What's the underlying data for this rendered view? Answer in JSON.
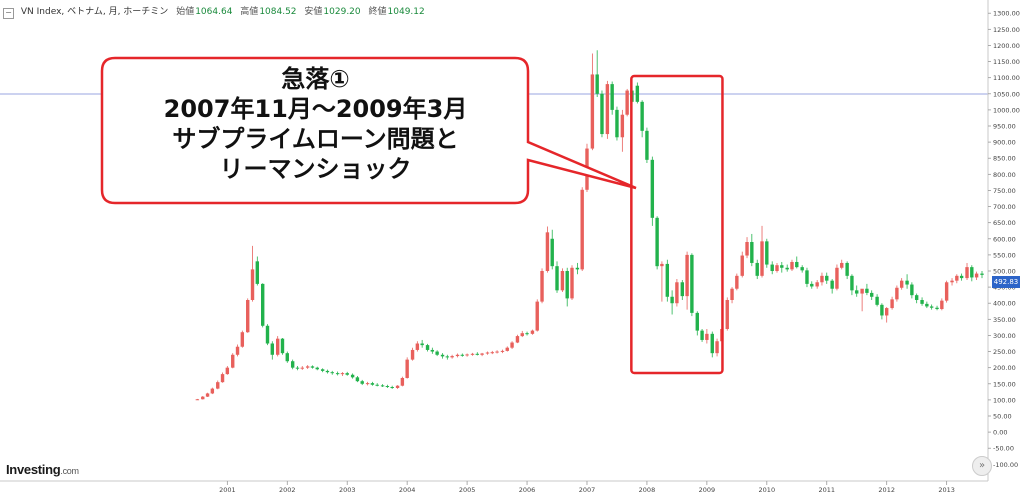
{
  "header": {
    "collapse_symbol": "−",
    "instrument": "VN Index, ベトナム, 月, ホーチミン",
    "open_label": "始値",
    "open_value": "1064.64",
    "high_label": "高値",
    "high_value": "1084.52",
    "low_label": "安値",
    "low_value": "1029.20",
    "close_label": "終値",
    "close_value": "1049.12"
  },
  "brand": {
    "name": "Investing",
    "suffix": ".com"
  },
  "last_price_tag": "492.83",
  "scroll_button_icon": "double-chevron-right-icon",
  "annotation": {
    "lines": [
      "急落①",
      "2007年11月～2009年3月",
      "サブプライムローン問題と",
      "リーマンショック"
    ]
  },
  "colors": {
    "up": "#e8605c",
    "down": "#22b24c",
    "highlight_box": "#e5262a",
    "ref_line": "#9aa6e0",
    "price_tag": "#2c64c8"
  },
  "chart_data": {
    "type": "candlestick",
    "x_tick_labels": [
      "2001",
      "2002",
      "2003",
      "2004",
      "2005",
      "2006",
      "2007",
      "2008",
      "2009",
      "2010",
      "2011",
      "2012",
      "2013"
    ],
    "y_tick_labels": [
      "-100.00",
      "-50.00",
      "0.00",
      "50.00",
      "100.00",
      "150.00",
      "200.00",
      "250.00",
      "300.00",
      "350.00",
      "400.00",
      "450.00",
      "500.00",
      "550.00",
      "600.00",
      "650.00",
      "700.00",
      "750.00",
      "800.00",
      "850.00",
      "900.00",
      "950.00",
      "1000.00",
      "1050.00",
      "1100.00",
      "1150.00",
      "1200.00",
      "1250.00",
      "1300.00"
    ],
    "ylim": [
      -130,
      1310
    ],
    "xlim": [
      2000.0,
      2013.68
    ],
    "reference_line": 1049.12,
    "highlight_period": [
      "2007-11",
      "2009-03"
    ],
    "grid": false,
    "candles": [
      {
        "t": 2000.54,
        "o": 100,
        "h": 103,
        "l": 100,
        "c": 102
      },
      {
        "t": 2000.63,
        "o": 102,
        "h": 112,
        "l": 101,
        "c": 110
      },
      {
        "t": 2000.71,
        "o": 110,
        "h": 122,
        "l": 109,
        "c": 120
      },
      {
        "t": 2000.79,
        "o": 120,
        "h": 138,
        "l": 118,
        "c": 135
      },
      {
        "t": 2000.88,
        "o": 135,
        "h": 160,
        "l": 133,
        "c": 155
      },
      {
        "t": 2000.96,
        "o": 155,
        "h": 185,
        "l": 153,
        "c": 180
      },
      {
        "t": 2001.04,
        "o": 180,
        "h": 205,
        "l": 178,
        "c": 200
      },
      {
        "t": 2001.13,
        "o": 200,
        "h": 245,
        "l": 198,
        "c": 240
      },
      {
        "t": 2001.21,
        "o": 240,
        "h": 272,
        "l": 235,
        "c": 265
      },
      {
        "t": 2001.29,
        "o": 265,
        "h": 315,
        "l": 262,
        "c": 310
      },
      {
        "t": 2001.38,
        "o": 310,
        "h": 415,
        "l": 308,
        "c": 410
      },
      {
        "t": 2001.46,
        "o": 410,
        "h": 578,
        "l": 405,
        "c": 505
      },
      {
        "t": 2001.54,
        "o": 530,
        "h": 545,
        "l": 455,
        "c": 460
      },
      {
        "t": 2001.63,
        "o": 460,
        "h": 462,
        "l": 325,
        "c": 330
      },
      {
        "t": 2001.71,
        "o": 330,
        "h": 335,
        "l": 270,
        "c": 275
      },
      {
        "t": 2001.79,
        "o": 275,
        "h": 282,
        "l": 225,
        "c": 240
      },
      {
        "t": 2001.88,
        "o": 240,
        "h": 298,
        "l": 235,
        "c": 290
      },
      {
        "t": 2001.96,
        "o": 290,
        "h": 292,
        "l": 240,
        "c": 245
      },
      {
        "t": 2002.04,
        "o": 245,
        "h": 250,
        "l": 215,
        "c": 220
      },
      {
        "t": 2002.13,
        "o": 220,
        "h": 225,
        "l": 195,
        "c": 200
      },
      {
        "t": 2002.21,
        "o": 200,
        "h": 205,
        "l": 192,
        "c": 198
      },
      {
        "t": 2002.29,
        "o": 198,
        "h": 205,
        "l": 193,
        "c": 200
      },
      {
        "t": 2002.38,
        "o": 200,
        "h": 208,
        "l": 196,
        "c": 204
      },
      {
        "t": 2002.46,
        "o": 204,
        "h": 207,
        "l": 197,
        "c": 200
      },
      {
        "t": 2002.54,
        "o": 200,
        "h": 203,
        "l": 192,
        "c": 195
      },
      {
        "t": 2002.63,
        "o": 195,
        "h": 198,
        "l": 186,
        "c": 190
      },
      {
        "t": 2002.71,
        "o": 190,
        "h": 194,
        "l": 182,
        "c": 186
      },
      {
        "t": 2002.79,
        "o": 186,
        "h": 190,
        "l": 178,
        "c": 183
      },
      {
        "t": 2002.88,
        "o": 183,
        "h": 188,
        "l": 176,
        "c": 180
      },
      {
        "t": 2002.96,
        "o": 180,
        "h": 186,
        "l": 174,
        "c": 183
      },
      {
        "t": 2003.04,
        "o": 183,
        "h": 187,
        "l": 175,
        "c": 178
      },
      {
        "t": 2003.13,
        "o": 178,
        "h": 182,
        "l": 166,
        "c": 170
      },
      {
        "t": 2003.21,
        "o": 170,
        "h": 174,
        "l": 155,
        "c": 158
      },
      {
        "t": 2003.29,
        "o": 158,
        "h": 162,
        "l": 146,
        "c": 150
      },
      {
        "t": 2003.38,
        "o": 150,
        "h": 156,
        "l": 145,
        "c": 152
      },
      {
        "t": 2003.46,
        "o": 152,
        "h": 156,
        "l": 144,
        "c": 147
      },
      {
        "t": 2003.54,
        "o": 147,
        "h": 152,
        "l": 142,
        "c": 145
      },
      {
        "t": 2003.63,
        "o": 145,
        "h": 149,
        "l": 140,
        "c": 143
      },
      {
        "t": 2003.71,
        "o": 143,
        "h": 147,
        "l": 137,
        "c": 140
      },
      {
        "t": 2003.79,
        "o": 140,
        "h": 144,
        "l": 134,
        "c": 137
      },
      {
        "t": 2003.88,
        "o": 137,
        "h": 146,
        "l": 134,
        "c": 144
      },
      {
        "t": 2003.96,
        "o": 144,
        "h": 172,
        "l": 142,
        "c": 168
      },
      {
        "t": 2004.04,
        "o": 168,
        "h": 232,
        "l": 166,
        "c": 225
      },
      {
        "t": 2004.13,
        "o": 225,
        "h": 262,
        "l": 222,
        "c": 255
      },
      {
        "t": 2004.21,
        "o": 255,
        "h": 282,
        "l": 250,
        "c": 275
      },
      {
        "t": 2004.29,
        "o": 275,
        "h": 286,
        "l": 262,
        "c": 270
      },
      {
        "t": 2004.38,
        "o": 270,
        "h": 274,
        "l": 250,
        "c": 255
      },
      {
        "t": 2004.46,
        "o": 255,
        "h": 262,
        "l": 243,
        "c": 250
      },
      {
        "t": 2004.54,
        "o": 250,
        "h": 254,
        "l": 236,
        "c": 240
      },
      {
        "t": 2004.63,
        "o": 240,
        "h": 245,
        "l": 228,
        "c": 235
      },
      {
        "t": 2004.71,
        "o": 235,
        "h": 240,
        "l": 225,
        "c": 232
      },
      {
        "t": 2004.79,
        "o": 232,
        "h": 240,
        "l": 228,
        "c": 236
      },
      {
        "t": 2004.88,
        "o": 236,
        "h": 244,
        "l": 232,
        "c": 240
      },
      {
        "t": 2004.96,
        "o": 240,
        "h": 244,
        "l": 234,
        "c": 238
      },
      {
        "t": 2005.04,
        "o": 238,
        "h": 244,
        "l": 234,
        "c": 241
      },
      {
        "t": 2005.13,
        "o": 241,
        "h": 246,
        "l": 237,
        "c": 243
      },
      {
        "t": 2005.21,
        "o": 243,
        "h": 248,
        "l": 238,
        "c": 240
      },
      {
        "t": 2005.29,
        "o": 240,
        "h": 246,
        "l": 236,
        "c": 244
      },
      {
        "t": 2005.38,
        "o": 244,
        "h": 250,
        "l": 240,
        "c": 247
      },
      {
        "t": 2005.46,
        "o": 247,
        "h": 252,
        "l": 242,
        "c": 248
      },
      {
        "t": 2005.54,
        "o": 248,
        "h": 254,
        "l": 244,
        "c": 250
      },
      {
        "t": 2005.63,
        "o": 250,
        "h": 256,
        "l": 245,
        "c": 252
      },
      {
        "t": 2005.71,
        "o": 252,
        "h": 266,
        "l": 250,
        "c": 262
      },
      {
        "t": 2005.79,
        "o": 262,
        "h": 282,
        "l": 258,
        "c": 278
      },
      {
        "t": 2005.88,
        "o": 278,
        "h": 302,
        "l": 276,
        "c": 298
      },
      {
        "t": 2005.96,
        "o": 298,
        "h": 314,
        "l": 295,
        "c": 307
      },
      {
        "t": 2006.04,
        "o": 307,
        "h": 312,
        "l": 300,
        "c": 305
      },
      {
        "t": 2006.13,
        "o": 305,
        "h": 318,
        "l": 302,
        "c": 315
      },
      {
        "t": 2006.21,
        "o": 315,
        "h": 412,
        "l": 312,
        "c": 405
      },
      {
        "t": 2006.29,
        "o": 405,
        "h": 508,
        "l": 400,
        "c": 500
      },
      {
        "t": 2006.38,
        "o": 500,
        "h": 638,
        "l": 495,
        "c": 620
      },
      {
        "t": 2006.46,
        "o": 600,
        "h": 628,
        "l": 505,
        "c": 515
      },
      {
        "t": 2006.54,
        "o": 515,
        "h": 530,
        "l": 432,
        "c": 440
      },
      {
        "t": 2006.63,
        "o": 440,
        "h": 508,
        "l": 435,
        "c": 500
      },
      {
        "t": 2006.71,
        "o": 500,
        "h": 510,
        "l": 390,
        "c": 415
      },
      {
        "t": 2006.79,
        "o": 415,
        "h": 518,
        "l": 410,
        "c": 510
      },
      {
        "t": 2006.88,
        "o": 510,
        "h": 525,
        "l": 490,
        "c": 505
      },
      {
        "t": 2006.96,
        "o": 505,
        "h": 760,
        "l": 500,
        "c": 752
      },
      {
        "t": 2007.04,
        "o": 752,
        "h": 895,
        "l": 745,
        "c": 880
      },
      {
        "t": 2007.13,
        "o": 880,
        "h": 1175,
        "l": 875,
        "c": 1110
      },
      {
        "t": 2007.21,
        "o": 1110,
        "h": 1185,
        "l": 1040,
        "c": 1050
      },
      {
        "t": 2007.29,
        "o": 1050,
        "h": 1060,
        "l": 915,
        "c": 925
      },
      {
        "t": 2007.38,
        "o": 925,
        "h": 1090,
        "l": 910,
        "c": 1080
      },
      {
        "t": 2007.46,
        "o": 1080,
        "h": 1088,
        "l": 985,
        "c": 1000
      },
      {
        "t": 2007.54,
        "o": 1000,
        "h": 1010,
        "l": 905,
        "c": 915
      },
      {
        "t": 2007.63,
        "o": 915,
        "h": 1000,
        "l": 870,
        "c": 985
      },
      {
        "t": 2007.71,
        "o": 985,
        "h": 1065,
        "l": 980,
        "c": 1060
      },
      {
        "t": 2007.79,
        "o": 1060,
        "h": 1080,
        "l": 1015,
        "c": 1025
      },
      {
        "t": 2007.88,
        "o": 1075,
        "h": 1085,
        "l": 1020,
        "c": 1025
      },
      {
        "t": 2007.96,
        "o": 1025,
        "h": 1030,
        "l": 915,
        "c": 935
      },
      {
        "t": 2008.04,
        "o": 935,
        "h": 945,
        "l": 835,
        "c": 845
      },
      {
        "t": 2008.13,
        "o": 845,
        "h": 855,
        "l": 640,
        "c": 665
      },
      {
        "t": 2008.21,
        "o": 665,
        "h": 670,
        "l": 505,
        "c": 515
      },
      {
        "t": 2008.29,
        "o": 515,
        "h": 530,
        "l": 405,
        "c": 522
      },
      {
        "t": 2008.38,
        "o": 522,
        "h": 535,
        "l": 405,
        "c": 420
      },
      {
        "t": 2008.46,
        "o": 420,
        "h": 440,
        "l": 365,
        "c": 400
      },
      {
        "t": 2008.54,
        "o": 400,
        "h": 475,
        "l": 390,
        "c": 465
      },
      {
        "t": 2008.63,
        "o": 465,
        "h": 472,
        "l": 410,
        "c": 422
      },
      {
        "t": 2008.71,
        "o": 422,
        "h": 560,
        "l": 380,
        "c": 550
      },
      {
        "t": 2008.79,
        "o": 550,
        "h": 555,
        "l": 360,
        "c": 370
      },
      {
        "t": 2008.88,
        "o": 370,
        "h": 375,
        "l": 300,
        "c": 315
      },
      {
        "t": 2008.96,
        "o": 315,
        "h": 320,
        "l": 280,
        "c": 286
      },
      {
        "t": 2009.04,
        "o": 286,
        "h": 320,
        "l": 275,
        "c": 305
      },
      {
        "t": 2009.13,
        "o": 305,
        "h": 312,
        "l": 232,
        "c": 245
      },
      {
        "t": 2009.21,
        "o": 245,
        "h": 290,
        "l": 235,
        "c": 282
      },
      {
        "t": 2009.29,
        "o": 282,
        "h": 325,
        "l": 278,
        "c": 320
      },
      {
        "t": 2009.38,
        "o": 320,
        "h": 418,
        "l": 315,
        "c": 410
      },
      {
        "t": 2009.46,
        "o": 410,
        "h": 450,
        "l": 400,
        "c": 445
      },
      {
        "t": 2009.54,
        "o": 445,
        "h": 492,
        "l": 440,
        "c": 485
      },
      {
        "t": 2009.63,
        "o": 485,
        "h": 560,
        "l": 480,
        "c": 548
      },
      {
        "t": 2009.71,
        "o": 548,
        "h": 605,
        "l": 540,
        "c": 590
      },
      {
        "t": 2009.79,
        "o": 590,
        "h": 615,
        "l": 515,
        "c": 525
      },
      {
        "t": 2009.88,
        "o": 525,
        "h": 535,
        "l": 475,
        "c": 485
      },
      {
        "t": 2009.96,
        "o": 485,
        "h": 640,
        "l": 480,
        "c": 592
      },
      {
        "t": 2010.04,
        "o": 592,
        "h": 600,
        "l": 510,
        "c": 520
      },
      {
        "t": 2010.13,
        "o": 520,
        "h": 530,
        "l": 490,
        "c": 500
      },
      {
        "t": 2010.21,
        "o": 500,
        "h": 525,
        "l": 495,
        "c": 518
      },
      {
        "t": 2010.29,
        "o": 518,
        "h": 528,
        "l": 495,
        "c": 510
      },
      {
        "t": 2010.38,
        "o": 510,
        "h": 520,
        "l": 498,
        "c": 505
      },
      {
        "t": 2010.46,
        "o": 505,
        "h": 535,
        "l": 500,
        "c": 528
      },
      {
        "t": 2010.54,
        "o": 528,
        "h": 545,
        "l": 508,
        "c": 512
      },
      {
        "t": 2010.63,
        "o": 512,
        "h": 518,
        "l": 495,
        "c": 502
      },
      {
        "t": 2010.71,
        "o": 502,
        "h": 510,
        "l": 450,
        "c": 460
      },
      {
        "t": 2010.79,
        "o": 460,
        "h": 468,
        "l": 445,
        "c": 452
      },
      {
        "t": 2010.88,
        "o": 452,
        "h": 472,
        "l": 445,
        "c": 465
      },
      {
        "t": 2010.96,
        "o": 465,
        "h": 495,
        "l": 455,
        "c": 485
      },
      {
        "t": 2011.04,
        "o": 485,
        "h": 495,
        "l": 460,
        "c": 470
      },
      {
        "t": 2011.13,
        "o": 470,
        "h": 475,
        "l": 430,
        "c": 445
      },
      {
        "t": 2011.21,
        "o": 445,
        "h": 520,
        "l": 440,
        "c": 510
      },
      {
        "t": 2011.29,
        "o": 510,
        "h": 535,
        "l": 505,
        "c": 525
      },
      {
        "t": 2011.38,
        "o": 525,
        "h": 530,
        "l": 475,
        "c": 485
      },
      {
        "t": 2011.46,
        "o": 485,
        "h": 490,
        "l": 425,
        "c": 440
      },
      {
        "t": 2011.54,
        "o": 440,
        "h": 455,
        "l": 420,
        "c": 430
      },
      {
        "t": 2011.63,
        "o": 430,
        "h": 440,
        "l": 375,
        "c": 445
      },
      {
        "t": 2011.71,
        "o": 445,
        "h": 460,
        "l": 425,
        "c": 432
      },
      {
        "t": 2011.79,
        "o": 432,
        "h": 440,
        "l": 410,
        "c": 420
      },
      {
        "t": 2011.88,
        "o": 420,
        "h": 428,
        "l": 390,
        "c": 395
      },
      {
        "t": 2011.96,
        "o": 395,
        "h": 400,
        "l": 350,
        "c": 362
      },
      {
        "t": 2012.04,
        "o": 362,
        "h": 388,
        "l": 340,
        "c": 385
      },
      {
        "t": 2012.13,
        "o": 385,
        "h": 420,
        "l": 380,
        "c": 412
      },
      {
        "t": 2012.21,
        "o": 412,
        "h": 455,
        "l": 405,
        "c": 448
      },
      {
        "t": 2012.29,
        "o": 448,
        "h": 478,
        "l": 442,
        "c": 470
      },
      {
        "t": 2012.38,
        "o": 470,
        "h": 490,
        "l": 445,
        "c": 458
      },
      {
        "t": 2012.46,
        "o": 458,
        "h": 465,
        "l": 415,
        "c": 425
      },
      {
        "t": 2012.54,
        "o": 425,
        "h": 430,
        "l": 400,
        "c": 410
      },
      {
        "t": 2012.63,
        "o": 410,
        "h": 418,
        "l": 392,
        "c": 398
      },
      {
        "t": 2012.71,
        "o": 398,
        "h": 405,
        "l": 385,
        "c": 390
      },
      {
        "t": 2012.79,
        "o": 390,
        "h": 396,
        "l": 380,
        "c": 386
      },
      {
        "t": 2012.88,
        "o": 386,
        "h": 392,
        "l": 378,
        "c": 382
      },
      {
        "t": 2012.96,
        "o": 382,
        "h": 415,
        "l": 378,
        "c": 408
      },
      {
        "t": 2013.04,
        "o": 408,
        "h": 470,
        "l": 402,
        "c": 465
      },
      {
        "t": 2013.13,
        "o": 465,
        "h": 478,
        "l": 455,
        "c": 470
      },
      {
        "t": 2013.21,
        "o": 470,
        "h": 490,
        "l": 462,
        "c": 485
      },
      {
        "t": 2013.29,
        "o": 485,
        "h": 492,
        "l": 470,
        "c": 478
      },
      {
        "t": 2013.38,
        "o": 478,
        "h": 525,
        "l": 472,
        "c": 512
      },
      {
        "t": 2013.46,
        "o": 512,
        "h": 518,
        "l": 468,
        "c": 480
      },
      {
        "t": 2013.54,
        "o": 480,
        "h": 498,
        "l": 472,
        "c": 492
      },
      {
        "t": 2013.63,
        "o": 492,
        "h": 500,
        "l": 478,
        "c": 488
      }
    ]
  }
}
